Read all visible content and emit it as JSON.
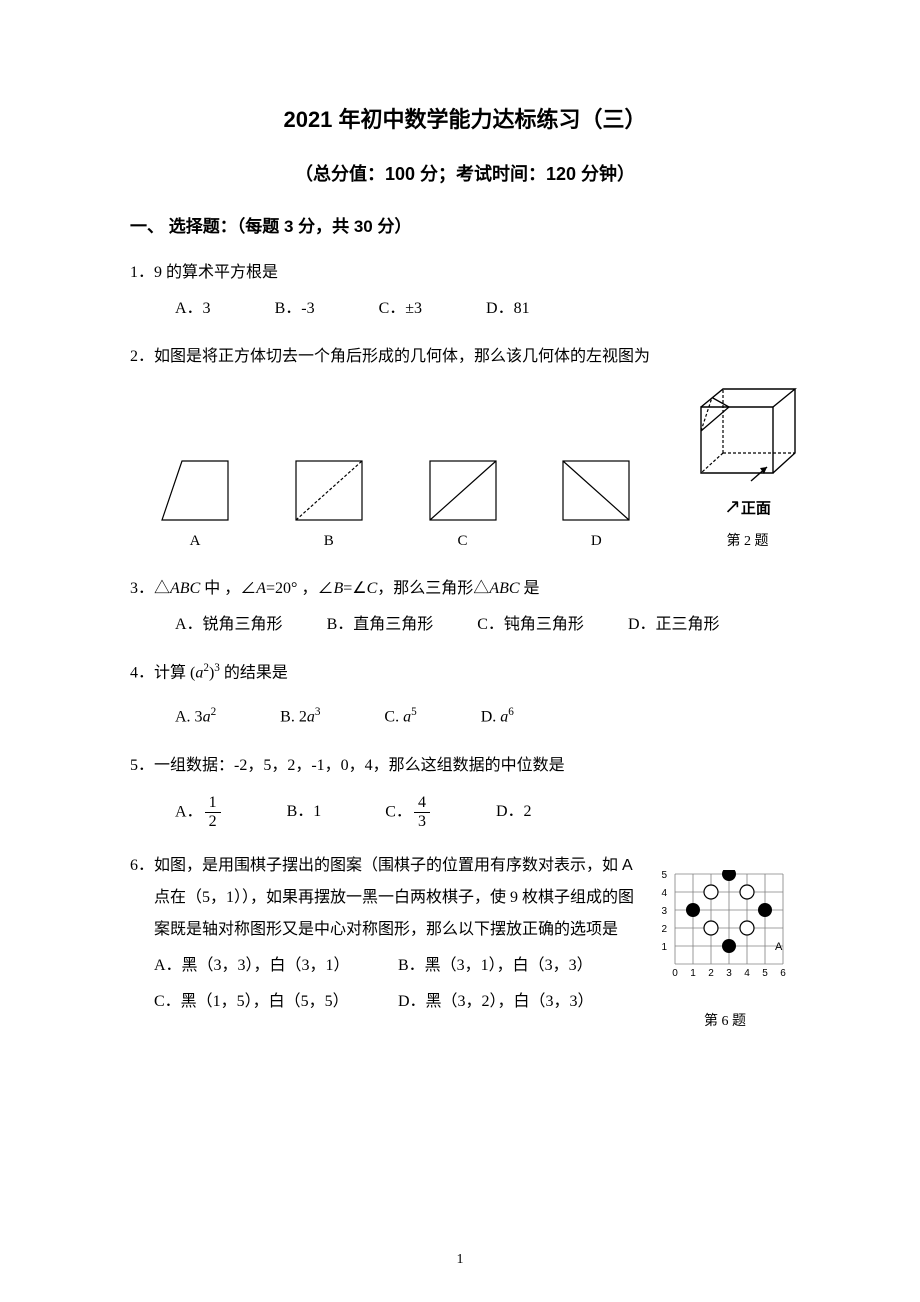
{
  "title": "2021 年初中数学能力达标练习（三）",
  "subtitle": "（总分值：100 分；考试时间：120 分钟）",
  "section1": "一、   选择题：（每题 3 分，共 30 分）",
  "q1": {
    "text": "1．9 的算术平方根是",
    "A": "A．3",
    "B": "B．-3",
    "C": "C．±3",
    "D": "D．81"
  },
  "q2": {
    "text": "2．如图是将正方体切去一个角后形成的几何体，那么该几何体的左视图为",
    "labelA": "A",
    "labelB": "B",
    "labelC": "C",
    "labelD": "D",
    "frontLabel": "正面",
    "caption": "第 2 题",
    "svg": {
      "w": 70,
      "h": 62,
      "cubeW": 105,
      "cubeH": 98,
      "stroke": "#000",
      "sw": 1.2,
      "dash": "3,2"
    }
  },
  "q3": {
    "text1": "3．△",
    "textABC": "ABC",
    "text2": " 中 ，∠",
    "textA": "A",
    "text3": "=20° ，∠",
    "textB": "B",
    "text4": "=∠",
    "textC": "C",
    "text5": "，那么三角形△",
    "textABC2": "ABC",
    "text6": " 是",
    "A": "A．锐角三角形",
    "B": "B．直角三角形",
    "C": "C．钝角三角形",
    "D": "D．正三角形"
  },
  "q4": {
    "text": "4．计算 (",
    "text2": ")",
    "text3": " 的结果是",
    "base": "a",
    "e1": "2",
    "e2": "3",
    "A": "A. 3",
    "Ab": "a",
    "Ae": "2",
    "B": "B.  2",
    "Bb": "a",
    "Be": "3",
    "C": "C.  ",
    "Cb": "a",
    "Ce": "5",
    "D": "D. ",
    "Db": "a",
    "De": "6"
  },
  "q5": {
    "text": "5．一组数据：-2，5，2，-1，0，4，那么这组数据的中位数是",
    "A": "A．",
    "An": "1",
    "Ad": "2",
    "B": "B．1",
    "C": "C．",
    "Cn": "4",
    "Cd": "3",
    "D": "D．2"
  },
  "q6": {
    "line1a": "6．如图，是用围棋子摆出的图案（围棋子的位置用有序数对表示，如 ",
    "line1b": "A",
    "line2": "点在（5，1）），如果再摆放一黑一白两枚棋子，使 9 枚棋子组成的图",
    "line3": "案既是轴对称图形又是中心对称图形，那么以下摆放正确的选项是",
    "A": "A．黑（3，3），白（3，1）",
    "B": "B．黑（3，1），白（3，3）",
    "C": "C．黑（1，5），白（5，5）",
    "D": "D．黑（3，2），白（3，3）",
    "caption": "第 6 题",
    "labelA": "A",
    "grid": {
      "cols": 6,
      "rows": 5,
      "cell": 18,
      "off": 18,
      "stroke": "#808080",
      "sw": 0.8,
      "xticks": [
        "0",
        "1",
        "2",
        "3",
        "4",
        "5",
        "6"
      ],
      "yticks": [
        "1",
        "2",
        "3",
        "4",
        "5"
      ],
      "black": [
        [
          3,
          5
        ],
        [
          1,
          3
        ],
        [
          5,
          3
        ],
        [
          3,
          1
        ]
      ],
      "white": [
        [
          2,
          4
        ],
        [
          4,
          4
        ],
        [
          2,
          2
        ],
        [
          4,
          2
        ]
      ],
      "r": 7
    }
  },
  "pageNum": "1"
}
